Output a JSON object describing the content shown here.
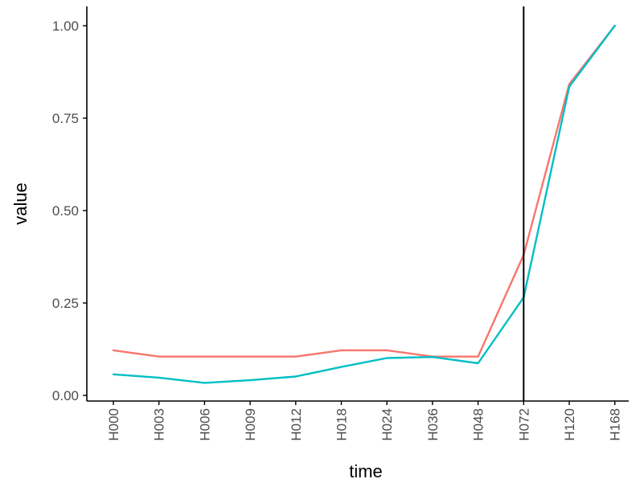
{
  "chart_data": {
    "type": "line",
    "xlabel": "time",
    "ylabel": "value",
    "categories": [
      "H000",
      "H003",
      "H006",
      "H009",
      "H012",
      "H018",
      "H024",
      "H036",
      "H048",
      "H072",
      "H120",
      "H168"
    ],
    "ylim": [
      -0.01,
      1.05
    ],
    "yticks": [
      0.0,
      0.25,
      0.5,
      0.75,
      1.0
    ],
    "ytick_labels": [
      "0.00",
      "0.25",
      "0.50",
      "0.75",
      "1.00"
    ],
    "grid": false,
    "legend": "none",
    "vline_at": "H072",
    "vline_color": "#000000",
    "series": [
      {
        "color": "#F8766D",
        "values": [
          0.122,
          0.105,
          0.105,
          0.105,
          0.105,
          0.122,
          0.122,
          0.105,
          0.105,
          0.38,
          0.842,
          1.0
        ]
      },
      {
        "color": "#00BFC4",
        "values": [
          0.057,
          0.048,
          0.034,
          0.041,
          0.051,
          0.077,
          0.101,
          0.104,
          0.087,
          0.265,
          0.835,
          1.0
        ]
      }
    ]
  }
}
